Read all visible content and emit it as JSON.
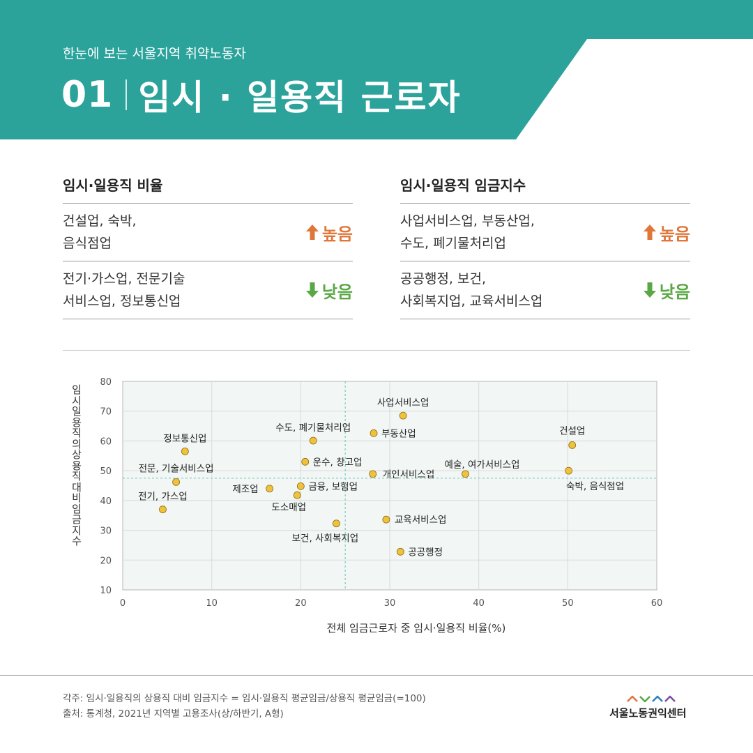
{
  "header": {
    "subtitle": "한눈에 보는 서울지역 취약노동자",
    "number": "01",
    "title": "임시 · 일용직 근로자",
    "color": "#2ba39b"
  },
  "panels": {
    "ratio": {
      "title": "임시·일용직 비율",
      "rows": [
        {
          "line1": "건설업, 숙박,",
          "line2": "음식점업",
          "badge": "높음"
        },
        {
          "line1": "전기·가스업, 전문기술",
          "line2": "서비스업, 정보통신업",
          "badge": "낮음"
        }
      ]
    },
    "wage": {
      "title": "임시·일용직 임금지수",
      "rows": [
        {
          "line1": "사업서비스업, 부동산업,",
          "line2": "수도, 폐기물처리업",
          "badge": "높음"
        },
        {
          "line1": "공공행정, 보건,",
          "line2": "사회복지업, 교육서비스업",
          "badge": "낮음"
        }
      ]
    },
    "high_color": "#e0773a",
    "low_color": "#5aa845"
  },
  "chart_data": {
    "type": "scatter",
    "xlabel": "전체 임금근로자 중 임시·일용직 비율(%)",
    "ylabel": "임시일용직의 상용직 대비 임금지수",
    "xlim": [
      0,
      60
    ],
    "ylim": [
      10,
      80
    ],
    "xticks": [
      "0",
      "10",
      "20",
      "30",
      "40",
      "50",
      "60"
    ],
    "yticks": [
      "10",
      "20",
      "30",
      "40",
      "50",
      "60",
      "70",
      "80"
    ],
    "grid": true,
    "reference_lines": {
      "x": 25,
      "y": 47.5
    },
    "point_color": "#f0c23b",
    "points": [
      {
        "label": "정보통신업",
        "x": 7.0,
        "y": 56.5
      },
      {
        "label": "전문, 기술서비스업",
        "x": 6.0,
        "y": 46.2
      },
      {
        "label": "전기, 가스업",
        "x": 4.5,
        "y": 37.0
      },
      {
        "label": "제조업",
        "x": 16.5,
        "y": 44.0
      },
      {
        "label": "수도, 폐기물처리업",
        "x": 21.4,
        "y": 60.1
      },
      {
        "label": "운수, 창고업",
        "x": 20.5,
        "y": 53.0
      },
      {
        "label": "금융, 보험업",
        "x": 20.0,
        "y": 44.8
      },
      {
        "label": "도소매업",
        "x": 19.6,
        "y": 41.8
      },
      {
        "label": "보건, 사회복지업",
        "x": 24.0,
        "y": 32.3
      },
      {
        "label": "사업서비스업",
        "x": 31.5,
        "y": 68.5
      },
      {
        "label": "부동산업",
        "x": 28.2,
        "y": 62.6
      },
      {
        "label": "개인서비스업",
        "x": 28.1,
        "y": 48.9
      },
      {
        "label": "교육서비스업",
        "x": 29.6,
        "y": 33.6
      },
      {
        "label": "공공행정",
        "x": 31.2,
        "y": 22.8
      },
      {
        "label": "예술, 여가서비스업",
        "x": 38.5,
        "y": 48.9
      },
      {
        "label": "건설업",
        "x": 50.5,
        "y": 58.6
      },
      {
        "label": "숙박, 음식점업",
        "x": 50.1,
        "y": 50.0
      }
    ]
  },
  "footer": {
    "note": "각주: 임시·일용직의 상용직 대비 임금지수 = 임시·일용직 평균임금/상용직 평균임금(=100)",
    "source": "출처: 통계청, 2021년 지역별 고용조사(상/하반기, A형)",
    "logo_text": "서울노동권익센터"
  }
}
